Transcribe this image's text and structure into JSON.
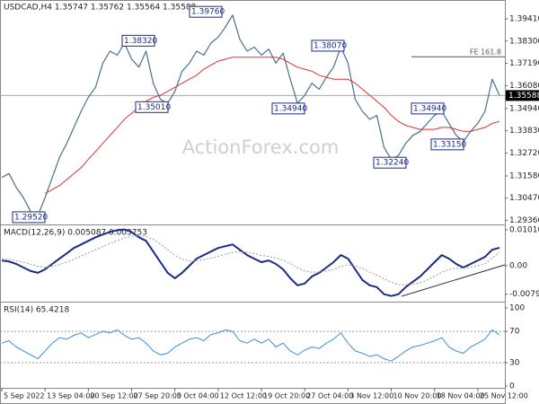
{
  "chart_data": [
    {
      "type": "line",
      "title": "USDCAD,H4 1.35747 1.35762 1.35564 1.35588",
      "watermark": "ActionForex.com",
      "xlim": [
        -0.25,
        69.75
      ],
      "ylim": [
        1.2916,
        1.4035
      ],
      "yticks": [
        {
          "value": 1.3941,
          "label": "1.39410"
        },
        {
          "value": 1.383,
          "label": "1.38300"
        },
        {
          "value": 1.3719,
          "label": "1.37190"
        },
        {
          "value": 1.3608,
          "label": "1.36080"
        },
        {
          "value": 1.3494,
          "label": "1.34940"
        },
        {
          "value": 1.3383,
          "label": "1.33830"
        },
        {
          "value": 1.3272,
          "label": "1.32720"
        },
        {
          "value": 1.3158,
          "label": "1.31580"
        },
        {
          "value": 1.3047,
          "label": "1.30470"
        },
        {
          "value": 1.2936,
          "label": "1.29360"
        }
      ],
      "series": [
        {
          "color": "#4a6f8a",
          "width": 1.2,
          "values": [
            1.315,
            1.317,
            1.31,
            1.305,
            1.298,
            1.296,
            1.305,
            1.315,
            1.325,
            1.332,
            1.34,
            1.348,
            1.355,
            1.36,
            1.372,
            1.378,
            1.376,
            1.382,
            1.374,
            1.37,
            1.378,
            1.362,
            1.354,
            1.352,
            1.358,
            1.368,
            1.372,
            1.378,
            1.376,
            1.382,
            1.385,
            1.39,
            1.396,
            1.384,
            1.378,
            1.38,
            1.376,
            1.379,
            1.372,
            1.377,
            1.364,
            1.352,
            1.356,
            1.362,
            1.359,
            1.365,
            1.37,
            1.38,
            1.372,
            1.354,
            1.348,
            1.344,
            1.346,
            1.33,
            1.324,
            1.326,
            1.332,
            1.336,
            1.338,
            1.342,
            1.346,
            1.348,
            1.342,
            1.336,
            1.333,
            1.338,
            1.342,
            1.348,
            1.364,
            1.3559
          ]
        },
        {
          "color": "#e03030",
          "width": 1,
          "values": [
            null,
            null,
            null,
            null,
            null,
            null,
            1.307,
            1.309,
            1.311,
            1.314,
            1.317,
            1.32,
            1.324,
            1.328,
            1.332,
            1.336,
            1.34,
            1.344,
            1.347,
            1.35,
            1.353,
            1.355,
            1.356,
            1.358,
            1.36,
            1.362,
            1.364,
            1.366,
            1.369,
            1.371,
            1.373,
            1.374,
            1.375,
            1.375,
            1.375,
            1.375,
            1.375,
            1.375,
            1.375,
            1.374,
            1.372,
            1.37,
            1.369,
            1.368,
            1.366,
            1.365,
            1.364,
            1.364,
            1.364,
            1.362,
            1.359,
            1.356,
            1.353,
            1.35,
            1.346,
            1.343,
            1.341,
            1.34,
            1.339,
            1.339,
            1.339,
            1.34,
            1.34,
            1.339,
            1.338,
            1.338,
            1.339,
            1.34,
            1.342,
            1.343
          ]
        }
      ],
      "current_price": 1.35588,
      "fe_level": {
        "value": 1.3752,
        "label": "FE 161.8"
      },
      "annotations": [
        {
          "value": 1.2952,
          "label": "1.29520"
        },
        {
          "value": 1.3832,
          "label": "1.38320"
        },
        {
          "value": 1.3976,
          "label": "1.39760"
        },
        {
          "value": 1.3501,
          "label": "1.35010"
        },
        {
          "value": 1.3807,
          "label": "1.38070"
        },
        {
          "value": 1.3494,
          "label": "1.34940"
        },
        {
          "value": 1.3224,
          "label": "1.32240"
        },
        {
          "value": 1.3494,
          "label": "1.34940"
        },
        {
          "value": 1.3315,
          "label": "1.33150"
        }
      ]
    },
    {
      "type": "line",
      "title": "MACD(12,26,9) 0.005087 0.003753",
      "xlim": [
        -0.25,
        69.75
      ],
      "ylim": [
        -0.00985,
        0.01137
      ],
      "yticks": [
        0.010103,
        {
          "value": 0,
          "label": "0.00"
        },
        -0.007998
      ],
      "series": [
        {
          "color": "#1a2a8a",
          "width": 2,
          "values": [
            0.0015,
            0.0012,
            0.0005,
            -0.0005,
            -0.0015,
            -0.002,
            -0.001,
            0.0005,
            0.002,
            0.0035,
            0.005,
            0.006,
            0.007,
            0.008,
            0.0088,
            0.0095,
            0.01,
            0.0102,
            0.0095,
            0.008,
            0.007,
            0.004,
            0.001,
            -0.002,
            -0.0035,
            -0.002,
            0,
            0.002,
            0.003,
            0.004,
            0.005,
            0.0055,
            0.006,
            0.0045,
            0.003,
            0.002,
            0.001,
            0.0015,
            0.0005,
            -0.001,
            -0.0035,
            -0.0055,
            -0.005,
            -0.003,
            -0.002,
            -0.0005,
            0.001,
            0.003,
            0.002,
            -0.001,
            -0.004,
            -0.0055,
            -0.006,
            -0.008,
            -0.0085,
            -0.008,
            -0.006,
            -0.0045,
            -0.003,
            -0.001,
            0.001,
            0.003,
            0.002,
            0.0005,
            -0.0005,
            0.0005,
            0.0015,
            0.0025,
            0.0045,
            0.005087
          ]
        },
        {
          "color": "#999999",
          "width": 1,
          "dashed": true,
          "values": [
            0.002,
            0.0018,
            0.0014,
            0.001,
            0.0004,
            -0.0001,
            -0.0004,
            -0.0002,
            0.0003,
            0.001,
            0.0018,
            0.0027,
            0.0036,
            0.0045,
            0.0054,
            0.0063,
            0.0071,
            0.0078,
            0.0083,
            0.0084,
            0.0082,
            0.0074,
            0.0061,
            0.0045,
            0.0029,
            0.0018,
            0.0013,
            0.0014,
            0.0017,
            0.0021,
            0.0027,
            0.0032,
            0.0038,
            0.004,
            0.0038,
            0.0034,
            0.0029,
            0.0026,
            0.0022,
            0.0016,
            0.0006,
            -0.0006,
            -0.0015,
            -0.0018,
            -0.0018,
            -0.0015,
            -0.001,
            -0.0002,
            0.0002,
            0,
            -0.0008,
            -0.0018,
            -0.0026,
            -0.0037,
            -0.0046,
            -0.0053,
            -0.0054,
            -0.0052,
            -0.0048,
            -0.004,
            -0.003,
            -0.0018,
            -0.001,
            -0.0007,
            -0.0006,
            -0.0004,
            0,
            0.0005,
            0.0022,
            0.003753
          ]
        }
      ]
    },
    {
      "type": "line",
      "title": "RSI(14) 65.4218",
      "xlim": [
        -0.25,
        69.75
      ],
      "ylim": [
        -2.3,
        106.9
      ],
      "yticks": [
        100,
        70,
        30,
        0
      ],
      "dashed_levels": [
        70,
        30
      ],
      "xticks": [
        {
          "value": 0,
          "label": "5 Sep 2022"
        },
        {
          "value": 6,
          "label": "13 Sep 04:00"
        },
        {
          "value": 12,
          "label": "20 Sep 12:00"
        },
        {
          "value": 18,
          "label": "27 Sep 20:00"
        },
        {
          "value": 24,
          "label": "5 Oct 04:00"
        },
        {
          "value": 30,
          "label": "12 Oct 12:00"
        },
        {
          "value": 36,
          "label": "19 Oct 20:00"
        },
        {
          "value": 42,
          "label": "27 Oct 04:00"
        },
        {
          "value": 48,
          "label": "3 Nov 12:00"
        },
        {
          "value": 54,
          "label": "10 Nov 20:00"
        },
        {
          "value": 60,
          "label": "18 Nov 04:00"
        },
        {
          "value": 66,
          "label": "25 Nov 12:00"
        }
      ],
      "series": [
        {
          "color": "#3a8fe0",
          "width": 1,
          "values": [
            55,
            58,
            50,
            45,
            40,
            35,
            45,
            55,
            62,
            60,
            65,
            68,
            62,
            66,
            70,
            68,
            72,
            65,
            60,
            62,
            55,
            45,
            40,
            42,
            50,
            55,
            60,
            62,
            58,
            66,
            68,
            72,
            70,
            58,
            55,
            60,
            55,
            60,
            50,
            55,
            45,
            40,
            46,
            50,
            48,
            55,
            60,
            68,
            55,
            45,
            42,
            38,
            40,
            35,
            32,
            38,
            45,
            50,
            52,
            55,
            58,
            62,
            50,
            45,
            42,
            50,
            55,
            60,
            72,
            65.4218
          ]
        }
      ]
    }
  ]
}
